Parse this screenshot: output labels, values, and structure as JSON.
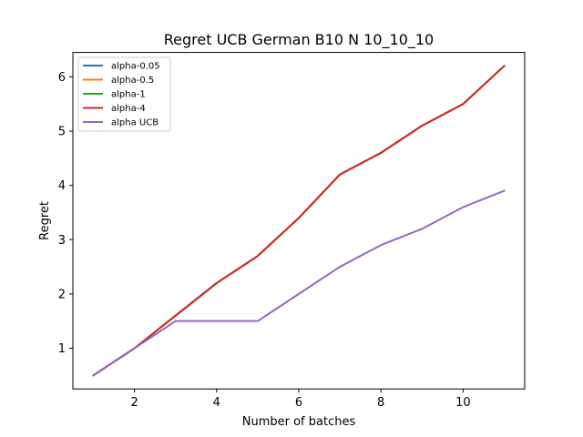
{
  "chart_data": {
    "type": "line",
    "title": "Regret UCB German B10 N 10_10_10",
    "xlabel": "Number of batches",
    "ylabel": "Regret",
    "xlim": [
      0.5,
      11.5
    ],
    "ylim": [
      0.25,
      6.45
    ],
    "xticks": [
      2,
      4,
      6,
      8,
      10
    ],
    "yticks": [
      1,
      2,
      3,
      4,
      5,
      6
    ],
    "grid": false,
    "legend_position": "top-left",
    "x": [
      1,
      2,
      3,
      4,
      5,
      6,
      7,
      8,
      9,
      10,
      11
    ],
    "series": [
      {
        "name": "alpha-0.05",
        "color": "#1f77b4",
        "values": [
          0.5,
          1.0,
          1.6,
          2.2,
          2.7,
          3.4,
          4.2,
          4.6,
          5.1,
          5.5,
          6.2
        ]
      },
      {
        "name": "alpha-0.5",
        "color": "#ff7f0e",
        "values": [
          0.5,
          1.0,
          1.6,
          2.2,
          2.7,
          3.4,
          4.2,
          4.6,
          5.1,
          5.5,
          6.2
        ]
      },
      {
        "name": "alpha-1",
        "color": "#2ca02c",
        "values": [
          0.5,
          1.0,
          1.6,
          2.2,
          2.7,
          3.4,
          4.2,
          4.6,
          5.1,
          5.5,
          6.2
        ]
      },
      {
        "name": "alpha-4",
        "color": "#d62728",
        "values": [
          0.5,
          1.0,
          1.6,
          2.2,
          2.7,
          3.4,
          4.2,
          4.6,
          5.1,
          5.5,
          6.2
        ]
      },
      {
        "name": "alpha UCB",
        "color": "#9467bd",
        "values": [
          0.5,
          1.0,
          1.5,
          1.5,
          1.5,
          2.0,
          2.5,
          2.9,
          3.2,
          3.6,
          3.9
        ]
      }
    ]
  }
}
